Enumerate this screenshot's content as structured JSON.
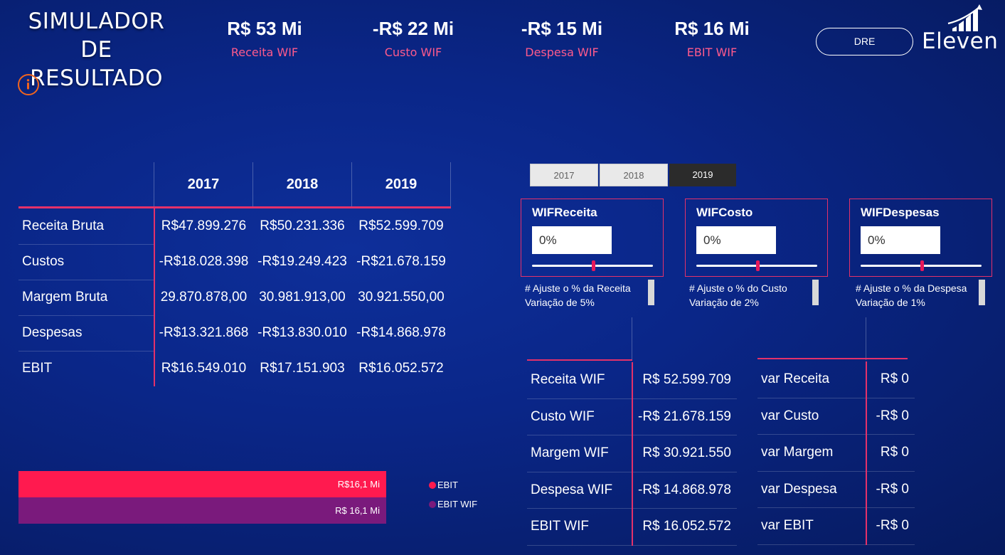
{
  "header": {
    "title_line1": "SIMULADOR",
    "title_line2": "DE RESULTADO",
    "info_icon": "info-icon",
    "dre_button": "DRE",
    "logo_text": "Eleven"
  },
  "kpis": [
    {
      "value": "R$ 53 Mi",
      "label": "Receita WIF"
    },
    {
      "value": "-R$ 22 Mi",
      "label": "Custo WIF"
    },
    {
      "value": "-R$ 15 Mi",
      "label": "Despesa WIF"
    },
    {
      "value": "R$ 16 Mi",
      "label": "EBIT WIF"
    }
  ],
  "dre_table": {
    "years": [
      "2017",
      "2018",
      "2019"
    ],
    "rows": [
      {
        "label": "Receita Bruta",
        "values": [
          "R$47.899.276",
          "R$50.231.336",
          "R$52.599.709"
        ]
      },
      {
        "label": "Custos",
        "values": [
          "-R$18.028.398",
          "-R$19.249.423",
          "-R$21.678.159"
        ]
      },
      {
        "label": "Margem Bruta",
        "values": [
          "29.870.878,00",
          "30.981.913,00",
          "30.921.550,00"
        ]
      },
      {
        "label": "Despesas",
        "values": [
          "-R$13.321.868",
          "-R$13.830.010",
          "-R$14.868.978"
        ]
      },
      {
        "label": "EBIT",
        "values": [
          "R$16.549.010",
          "R$17.151.903",
          "R$16.052.572"
        ]
      }
    ]
  },
  "year_slicer": {
    "options": [
      "2017",
      "2018",
      "2019"
    ],
    "selected": "2019"
  },
  "params": [
    {
      "title": "WIFReceita",
      "value": "0%",
      "note1": "# Ajuste o % da Receita",
      "note2": "Variação de 5%"
    },
    {
      "title": "WIFCosto",
      "value": "0%",
      "note1": "# Ajuste o % do Custo",
      "note2": "Variação de 2%"
    },
    {
      "title": "WIFDespesas",
      "value": "0%",
      "note1": "# Ajuste o % da Despesa",
      "note2": "Variação de 1%"
    }
  ],
  "wif_table": [
    {
      "label": "Receita WIF",
      "value": "R$ 52.599.709"
    },
    {
      "label": "Custo WIF",
      "value": "-R$ 21.678.159"
    },
    {
      "label": "Margem WIF",
      "value": "R$ 30.921.550"
    },
    {
      "label": "Despesa WIF",
      "value": "-R$ 14.868.978"
    },
    {
      "label": "EBIT WIF",
      "value": "R$ 16.052.572"
    }
  ],
  "var_table": [
    {
      "label": "var Receita",
      "value": "R$ 0"
    },
    {
      "label": "var Custo",
      "value": "-R$ 0"
    },
    {
      "label": "var Margem",
      "value": "R$ 0"
    },
    {
      "label": "var Despesa",
      "value": "-R$ 0"
    },
    {
      "label": "var EBIT",
      "value": "-R$ 0"
    }
  ],
  "ebit_bars": {
    "bars": [
      {
        "series": "EBIT",
        "value_label": "R$16,1 Mi",
        "color": "#ff1a4f"
      },
      {
        "series": "EBIT WIF",
        "value_label": "R$ 16,1 Mi",
        "color": "#7a1a7c"
      }
    ],
    "legend": [
      {
        "label": "EBIT",
        "color": "#ff1a4f"
      },
      {
        "label": "EBIT WIF",
        "color": "#7a1a7c"
      }
    ]
  },
  "colors": {
    "accent_pink": "#e4316a",
    "kpi_label": "#ff5a8c",
    "info_orange": "#f0641e"
  }
}
